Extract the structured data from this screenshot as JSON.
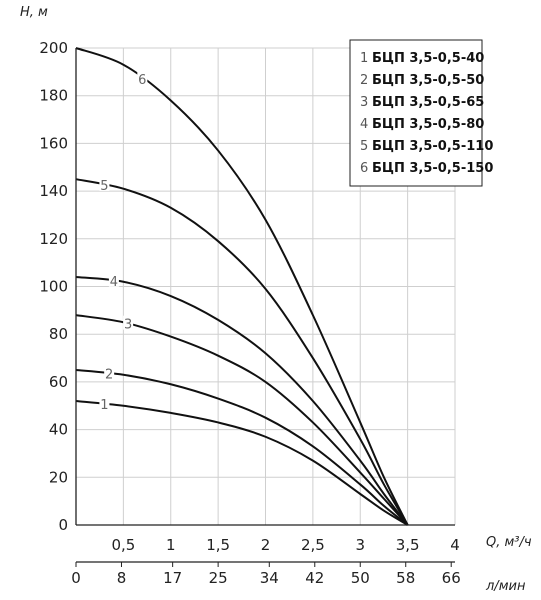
{
  "chart_data": {
    "type": "line",
    "ylabel": "H, м",
    "xlabel": "Q, м³/ч",
    "x2label": "л/мин",
    "xlim": [
      0,
      4
    ],
    "ylim": [
      0,
      200
    ],
    "x_ticks": [
      {
        "v": 0.5,
        "label": "0,5"
      },
      {
        "v": 1,
        "label": "1"
      },
      {
        "v": 1.5,
        "label": "1,5"
      },
      {
        "v": 2,
        "label": "2"
      },
      {
        "v": 2.5,
        "label": "2,5"
      },
      {
        "v": 3,
        "label": "3"
      },
      {
        "v": 3.5,
        "label": "3,5"
      },
      {
        "v": 4,
        "label": "4"
      }
    ],
    "y_ticks": [
      0,
      20,
      40,
      60,
      80,
      100,
      120,
      140,
      160,
      180,
      200
    ],
    "x2_ticks": [
      {
        "v": 0,
        "label": "0"
      },
      {
        "v": 0.48,
        "label": "8"
      },
      {
        "v": 1.02,
        "label": "17"
      },
      {
        "v": 1.5,
        "label": "25"
      },
      {
        "v": 2.04,
        "label": "34"
      },
      {
        "v": 2.52,
        "label": "42"
      },
      {
        "v": 3.0,
        "label": "50"
      },
      {
        "v": 3.48,
        "label": "58"
      },
      {
        "v": 3.96,
        "label": "66"
      }
    ],
    "grid": true,
    "legend_position": "top-right",
    "series": [
      {
        "name": "БЦП 3,5-0,5-40",
        "number": "1",
        "label_at": 0.3,
        "x": [
          0,
          0.5,
          1,
          1.5,
          2,
          2.5,
          3,
          3.25,
          3.5
        ],
        "y": [
          52,
          50,
          47,
          43,
          37,
          27,
          13,
          6,
          0
        ]
      },
      {
        "name": "БЦП 3,5-0,5-50",
        "number": "2",
        "label_at": 0.35,
        "x": [
          0,
          0.5,
          1,
          1.5,
          2,
          2.5,
          3,
          3.25,
          3.5
        ],
        "y": [
          65,
          63,
          59,
          53,
          45,
          33,
          17,
          8,
          0
        ]
      },
      {
        "name": "БЦП 3,5-0,5-65",
        "number": "3",
        "label_at": 0.55,
        "x": [
          0,
          0.5,
          1,
          1.5,
          2,
          2.5,
          3,
          3.25,
          3.5
        ],
        "y": [
          88,
          85,
          79,
          71,
          60,
          43,
          22,
          11,
          0
        ]
      },
      {
        "name": "БЦП 3,5-0,5-80",
        "number": "4",
        "label_at": 0.4,
        "x": [
          0,
          0.5,
          1,
          1.5,
          2,
          2.5,
          3,
          3.25,
          3.5
        ],
        "y": [
          104,
          102,
          96,
          86,
          72,
          52,
          27,
          13,
          0
        ]
      },
      {
        "name": "БЦП 3,5-0,5-110",
        "number": "5",
        "label_at": 0.3,
        "x": [
          0,
          0.5,
          1,
          1.5,
          2,
          2.5,
          3,
          3.25,
          3.5
        ],
        "y": [
          145,
          141,
          133,
          119,
          99,
          70,
          36,
          17,
          0
        ]
      },
      {
        "name": "БЦП 3,5-0,5-150",
        "number": "6",
        "label_at": 0.7,
        "x": [
          0,
          0.5,
          1,
          1.5,
          2,
          2.5,
          3,
          3.25,
          3.5
        ],
        "y": [
          200,
          193,
          178,
          157,
          128,
          88,
          43,
          20,
          0
        ]
      }
    ]
  }
}
